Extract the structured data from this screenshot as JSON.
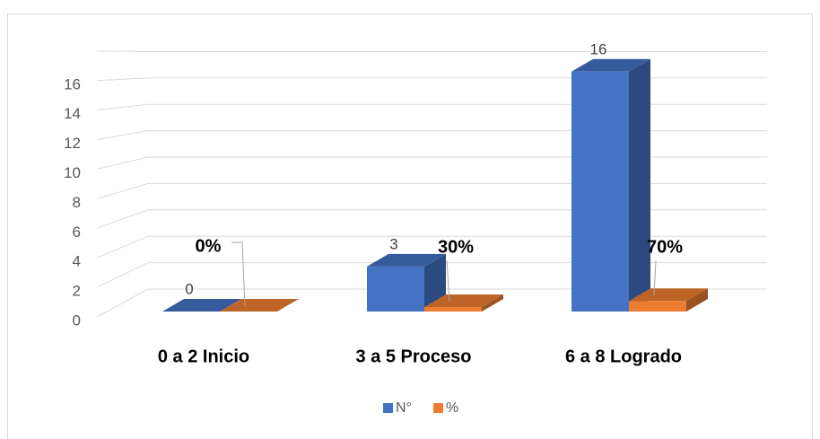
{
  "chart_data": {
    "type": "bar3d",
    "categories": [
      "0 a 2 Inicio",
      "3 a 5 Proceso",
      "6 a 8 Logrado"
    ],
    "series": [
      {
        "name": "N°",
        "color": "#4472c4",
        "values": [
          0,
          3,
          16
        ]
      },
      {
        "name": "%",
        "color": "#ed7d31",
        "values": [
          0,
          0.3,
          0.7
        ],
        "value_labels": [
          "0%",
          "30%",
          "70%"
        ]
      }
    ],
    "ylim": [
      0,
      18
    ],
    "yticks": [
      0,
      2,
      4,
      6,
      8,
      10,
      12,
      14,
      16
    ],
    "grid": true,
    "legend": "bottom"
  }
}
